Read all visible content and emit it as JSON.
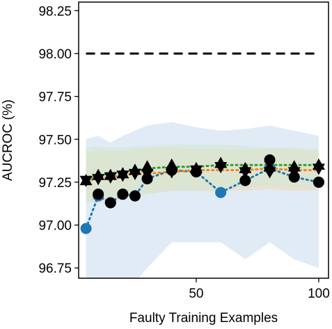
{
  "chart_data": {
    "type": "line",
    "xlabel": "Faulty Training Examples",
    "ylabel": "AUCROC (%)",
    "xlim": [
      2,
      104
    ],
    "ylim": [
      96.69,
      98.3
    ],
    "xticks": [
      50,
      100
    ],
    "xtick_labels": [
      "50",
      "100"
    ],
    "yticks": [
      96.75,
      97.0,
      97.25,
      97.5,
      97.75,
      98.0,
      98.25
    ],
    "ytick_labels": [
      "96.75",
      "97.00",
      "97.25",
      "97.50",
      "97.75",
      "98.00",
      "98.25"
    ],
    "grid": false,
    "legend": "none",
    "reference_line": {
      "y": 98.0,
      "style": "dashed",
      "color": "#000000"
    },
    "x": [
      5,
      10,
      15,
      20,
      25,
      30,
      40,
      50,
      60,
      70,
      80,
      90,
      100
    ],
    "bands": [
      {
        "color": "#c6dbef",
        "lower": [
          96.5,
          96.67,
          96.5,
          96.6,
          96.67,
          96.75,
          96.9,
          96.9,
          96.9,
          96.8,
          96.9,
          96.8,
          96.75
        ],
        "upper": [
          97.5,
          97.52,
          97.48,
          97.52,
          97.55,
          97.58,
          97.6,
          97.57,
          97.55,
          97.56,
          97.58,
          97.55,
          97.52
        ]
      },
      {
        "color": "#f5d5b8",
        "lower": [
          97.14,
          97.13,
          97.13,
          97.15,
          97.17,
          97.18,
          97.2,
          97.2,
          97.2,
          97.2,
          97.21,
          97.2,
          97.2
        ],
        "upper": [
          97.42,
          97.44,
          97.43,
          97.43,
          97.44,
          97.45,
          97.45,
          97.44,
          97.44,
          97.44,
          97.44,
          97.44,
          97.43
        ]
      },
      {
        "color": "#cfe8cf",
        "lower": [
          97.13,
          97.14,
          97.15,
          97.16,
          97.17,
          97.18,
          97.2,
          97.2,
          97.2,
          97.22,
          97.23,
          97.22,
          97.21
        ],
        "upper": [
          97.45,
          97.46,
          97.45,
          97.45,
          97.46,
          97.46,
          97.47,
          97.47,
          97.47,
          97.46,
          97.45,
          97.45,
          97.44
        ]
      }
    ],
    "series": [
      {
        "color": "#1f77b4",
        "marker": "circle",
        "values": [
          96.98,
          97.17,
          97.13,
          97.18,
          97.17,
          97.27,
          97.32,
          97.31,
          97.19,
          97.26,
          97.33,
          97.28,
          97.25
        ]
      },
      {
        "color": "#ff7f0e",
        "marker": "triangle-down",
        "values": [
          97.26,
          97.27,
          97.28,
          97.29,
          97.3,
          97.3,
          97.31,
          97.32,
          97.32,
          97.32,
          97.33,
          97.32,
          97.32
        ]
      },
      {
        "color": "#2ca02c",
        "marker": "triangle-up",
        "values": [
          97.27,
          97.29,
          97.3,
          97.31,
          97.32,
          97.33,
          97.34,
          97.34,
          97.35,
          97.35,
          97.35,
          97.35,
          97.35
        ]
      }
    ],
    "black_markers": [
      {
        "marker": "circle",
        "values": [
          null,
          97.18,
          97.13,
          97.18,
          97.17,
          97.27,
          97.32,
          97.31,
          null,
          97.26,
          97.38,
          97.28,
          97.25
        ]
      },
      {
        "marker": "triangle-down",
        "values": [
          97.26,
          97.27,
          97.28,
          97.29,
          97.3,
          97.3,
          97.31,
          97.32,
          97.34,
          97.31,
          97.31,
          97.31,
          97.33
        ]
      },
      {
        "marker": "triangle-up",
        "values": [
          97.26,
          97.29,
          97.29,
          97.3,
          97.32,
          97.34,
          97.35,
          97.33,
          97.36,
          97.33,
          97.34,
          97.34,
          97.35
        ]
      }
    ]
  }
}
